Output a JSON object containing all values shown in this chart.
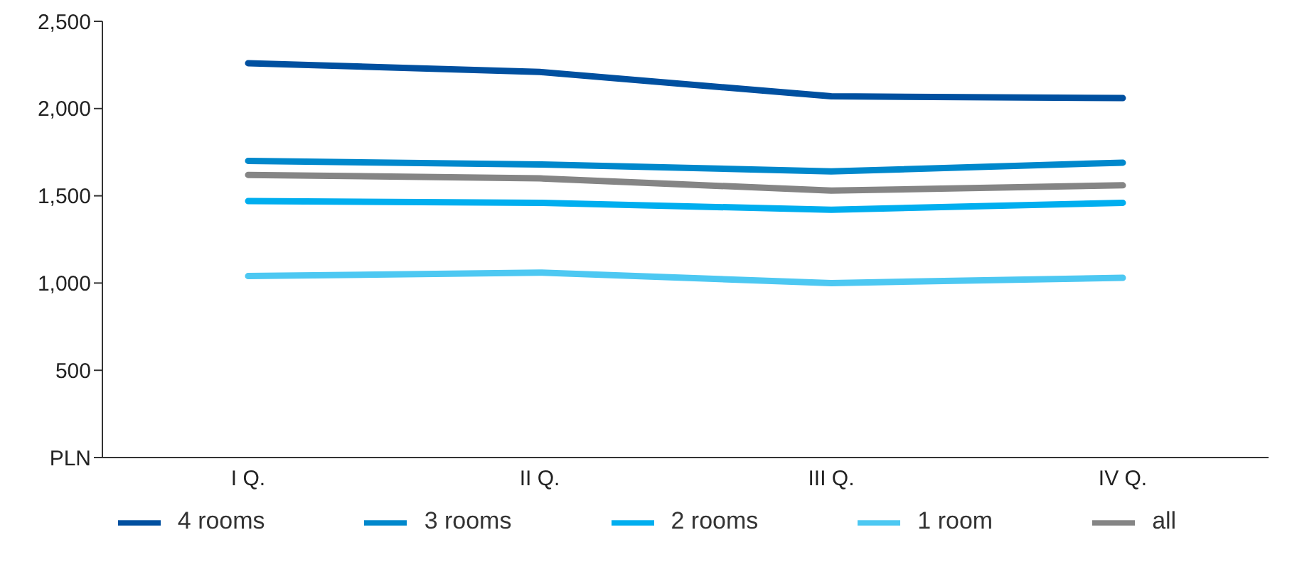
{
  "chart_data": {
    "type": "line",
    "categories": [
      "I Q.",
      "II Q.",
      "III Q.",
      "IV Q."
    ],
    "series": [
      {
        "name": "4 rooms",
        "color": "#0050a0",
        "values": [
          2260,
          2210,
          2070,
          2060
        ]
      },
      {
        "name": "3 rooms",
        "color": "#0088cc",
        "values": [
          1700,
          1680,
          1640,
          1690
        ]
      },
      {
        "name": "2 rooms",
        "color": "#00aeef",
        "values": [
          1470,
          1460,
          1420,
          1460
        ]
      },
      {
        "name": "1 room",
        "color": "#4dc8f2",
        "values": [
          1040,
          1060,
          1000,
          1030
        ]
      },
      {
        "name": "all",
        "color": "#858585",
        "values": [
          1620,
          1600,
          1530,
          1560
        ]
      }
    ],
    "ylim": [
      0,
      2500
    ],
    "yticks": [
      {
        "value": 0,
        "label": "PLN"
      },
      500,
      {
        "value": 1000,
        "label": "1,000"
      },
      {
        "value": 1500,
        "label": "1,500"
      },
      {
        "value": 2000,
        "label": "2,000"
      },
      {
        "value": 2500,
        "label": "2,500"
      }
    ],
    "legend": "bottom",
    "marker": "none",
    "line_style": "solid"
  }
}
